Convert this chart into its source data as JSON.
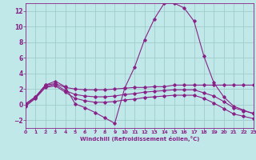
{
  "background_color": "#c0e8e8",
  "grid_color": "#a0cccc",
  "line_color": "#882288",
  "xlabel": "Windchill (Refroidissement éolien,°C)",
  "xlim": [
    0,
    23
  ],
  "ylim": [
    -3,
    13
  ],
  "yticks": [
    -2,
    0,
    2,
    4,
    6,
    8,
    10,
    12
  ],
  "xticks": [
    0,
    1,
    2,
    3,
    4,
    5,
    6,
    7,
    8,
    9,
    10,
    11,
    12,
    13,
    14,
    15,
    16,
    17,
    18,
    19,
    20,
    21,
    22,
    23
  ],
  "line1_x": [
    0,
    1,
    2,
    3,
    4,
    5,
    6,
    7,
    8,
    9,
    10,
    11,
    12,
    13,
    14,
    15,
    16,
    17,
    18,
    19,
    20,
    21,
    22,
    23
  ],
  "line1_y": [
    0.1,
    1.0,
    2.5,
    3.0,
    2.3,
    0.1,
    -0.4,
    -1.0,
    -1.7,
    -2.4,
    2.1,
    4.8,
    8.3,
    11.0,
    13.0,
    13.0,
    12.4,
    10.7,
    6.2,
    2.8,
    1.0,
    -0.2,
    -0.7,
    -1.2
  ],
  "line2_x": [
    0,
    1,
    2,
    3,
    4,
    5,
    6,
    7,
    8,
    9,
    10,
    11,
    12,
    13,
    14,
    15,
    16,
    17,
    18,
    19,
    20,
    21,
    22,
    23
  ],
  "line2_y": [
    0.1,
    1.0,
    2.5,
    2.7,
    2.2,
    2.0,
    1.9,
    1.9,
    1.9,
    2.0,
    2.1,
    2.2,
    2.2,
    2.3,
    2.3,
    2.5,
    2.5,
    2.5,
    2.5,
    2.5,
    2.5,
    2.5,
    2.5,
    2.5
  ],
  "line3_x": [
    0,
    1,
    2,
    3,
    4,
    5,
    6,
    7,
    8,
    9,
    10,
    11,
    12,
    13,
    14,
    15,
    16,
    17,
    18,
    19,
    20,
    21,
    22,
    23
  ],
  "line3_y": [
    -0.1,
    0.9,
    2.3,
    2.6,
    1.8,
    1.3,
    1.1,
    1.0,
    1.0,
    1.1,
    1.3,
    1.4,
    1.6,
    1.7,
    1.8,
    1.9,
    1.9,
    1.9,
    1.5,
    1.1,
    0.4,
    -0.4,
    -0.8,
    -1.1
  ],
  "line4_x": [
    0,
    1,
    2,
    3,
    4,
    5,
    6,
    7,
    8,
    9,
    10,
    11,
    12,
    13,
    14,
    15,
    16,
    17,
    18,
    19,
    20,
    21,
    22,
    23
  ],
  "line4_y": [
    -0.2,
    0.8,
    2.2,
    2.4,
    1.6,
    0.8,
    0.5,
    0.3,
    0.3,
    0.4,
    0.6,
    0.7,
    0.9,
    1.0,
    1.1,
    1.2,
    1.2,
    1.2,
    0.8,
    0.2,
    -0.5,
    -1.2,
    -1.5,
    -1.8
  ]
}
